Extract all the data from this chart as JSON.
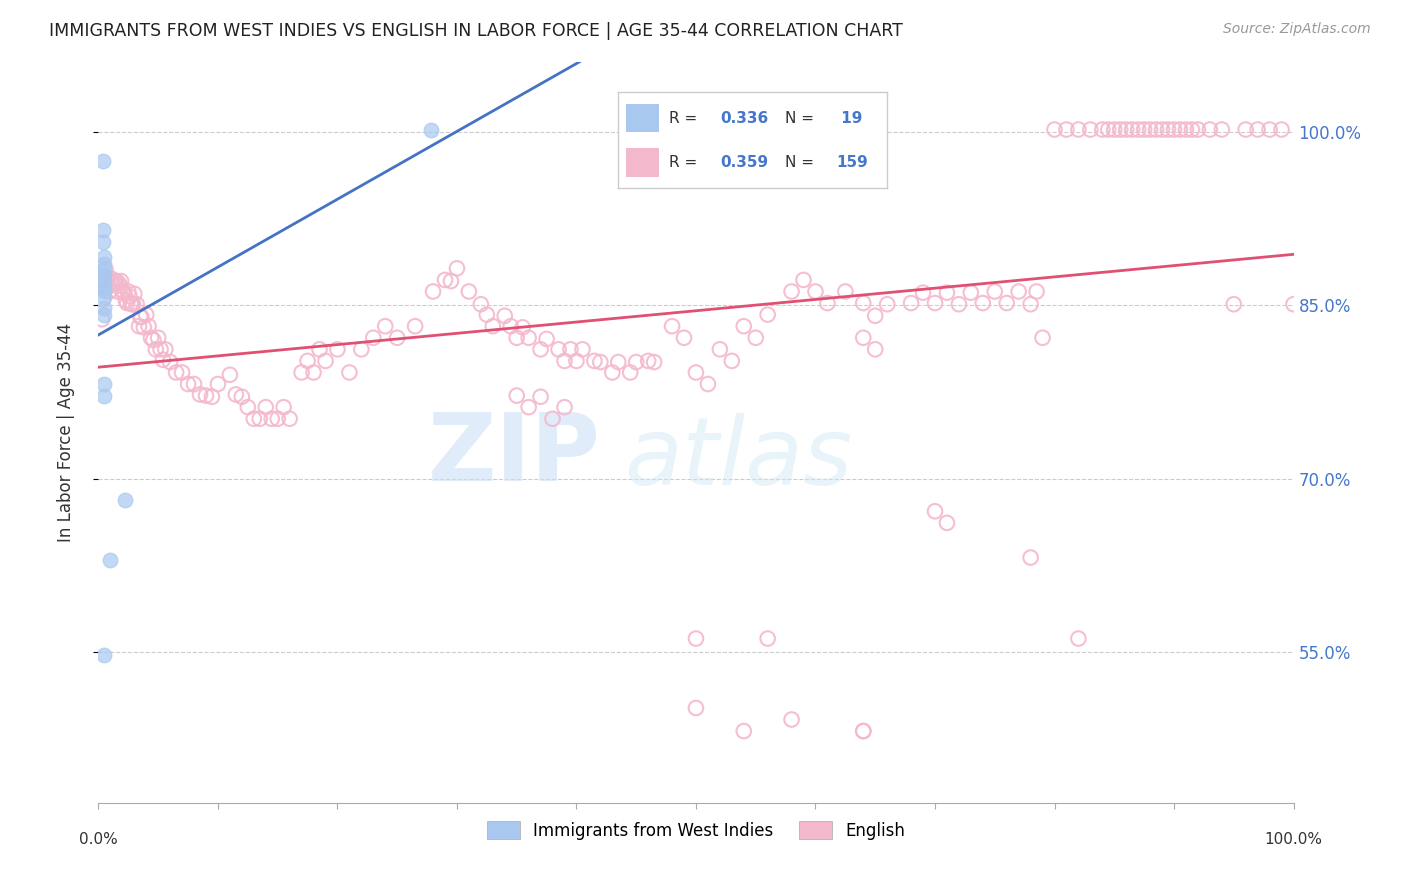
{
  "title": "IMMIGRANTS FROM WEST INDIES VS ENGLISH IN LABOR FORCE | AGE 35-44 CORRELATION CHART",
  "source": "Source: ZipAtlas.com",
  "ylabel": "In Labor Force | Age 35-44",
  "ytick_labels": [
    "55.0%",
    "70.0%",
    "85.0%",
    "100.0%"
  ],
  "ytick_values": [
    0.55,
    0.7,
    0.85,
    1.0
  ],
  "xlim": [
    0.0,
    1.0
  ],
  "ylim": [
    0.42,
    1.06
  ],
  "blue_color": "#a8c8f0",
  "pink_color": "#f4b8cc",
  "blue_line_color": "#4472c4",
  "pink_line_color": "#e05070",
  "blue_scatter": [
    [
      0.004,
      0.975
    ],
    [
      0.004,
      0.915
    ],
    [
      0.004,
      0.905
    ],
    [
      0.005,
      0.892
    ],
    [
      0.005,
      0.886
    ],
    [
      0.005,
      0.881
    ],
    [
      0.005,
      0.876
    ],
    [
      0.005,
      0.871
    ],
    [
      0.005,
      0.866
    ],
    [
      0.005,
      0.862
    ],
    [
      0.005,
      0.857
    ],
    [
      0.005,
      0.848
    ],
    [
      0.005,
      0.842
    ],
    [
      0.005,
      0.782
    ],
    [
      0.005,
      0.772
    ],
    [
      0.005,
      0.548
    ],
    [
      0.01,
      0.63
    ],
    [
      0.022,
      0.682
    ],
    [
      0.278,
      1.002
    ]
  ],
  "pink_scatter": [
    [
      0.003,
      0.838
    ],
    [
      0.004,
      0.855
    ],
    [
      0.005,
      0.872
    ],
    [
      0.006,
      0.881
    ],
    [
      0.007,
      0.865
    ],
    [
      0.008,
      0.872
    ],
    [
      0.009,
      0.862
    ],
    [
      0.01,
      0.871
    ],
    [
      0.011,
      0.873
    ],
    [
      0.012,
      0.868
    ],
    [
      0.013,
      0.871
    ],
    [
      0.014,
      0.869
    ],
    [
      0.015,
      0.871
    ],
    [
      0.016,
      0.862
    ],
    [
      0.017,
      0.869
    ],
    [
      0.018,
      0.867
    ],
    [
      0.019,
      0.871
    ],
    [
      0.02,
      0.862
    ],
    [
      0.021,
      0.862
    ],
    [
      0.022,
      0.86
    ],
    [
      0.023,
      0.854
    ],
    [
      0.024,
      0.852
    ],
    [
      0.025,
      0.862
    ],
    [
      0.026,
      0.858
    ],
    [
      0.027,
      0.852
    ],
    [
      0.028,
      0.851
    ],
    [
      0.029,
      0.851
    ],
    [
      0.03,
      0.86
    ],
    [
      0.032,
      0.851
    ],
    [
      0.034,
      0.832
    ],
    [
      0.035,
      0.84
    ],
    [
      0.036,
      0.84
    ],
    [
      0.038,
      0.831
    ],
    [
      0.04,
      0.842
    ],
    [
      0.042,
      0.832
    ],
    [
      0.044,
      0.822
    ],
    [
      0.046,
      0.82
    ],
    [
      0.048,
      0.812
    ],
    [
      0.05,
      0.822
    ],
    [
      0.052,
      0.812
    ],
    [
      0.054,
      0.803
    ],
    [
      0.056,
      0.812
    ],
    [
      0.06,
      0.801
    ],
    [
      0.065,
      0.792
    ],
    [
      0.07,
      0.792
    ],
    [
      0.075,
      0.782
    ],
    [
      0.08,
      0.782
    ],
    [
      0.085,
      0.773
    ],
    [
      0.09,
      0.772
    ],
    [
      0.095,
      0.771
    ],
    [
      0.1,
      0.782
    ],
    [
      0.11,
      0.79
    ],
    [
      0.115,
      0.773
    ],
    [
      0.12,
      0.771
    ],
    [
      0.125,
      0.762
    ],
    [
      0.13,
      0.752
    ],
    [
      0.135,
      0.752
    ],
    [
      0.14,
      0.762
    ],
    [
      0.145,
      0.752
    ],
    [
      0.15,
      0.752
    ],
    [
      0.155,
      0.762
    ],
    [
      0.16,
      0.752
    ],
    [
      0.17,
      0.792
    ],
    [
      0.175,
      0.802
    ],
    [
      0.18,
      0.792
    ],
    [
      0.185,
      0.812
    ],
    [
      0.19,
      0.802
    ],
    [
      0.2,
      0.812
    ],
    [
      0.21,
      0.792
    ],
    [
      0.22,
      0.812
    ],
    [
      0.23,
      0.822
    ],
    [
      0.24,
      0.832
    ],
    [
      0.25,
      0.822
    ],
    [
      0.265,
      0.832
    ],
    [
      0.28,
      0.862
    ],
    [
      0.295,
      0.871
    ],
    [
      0.31,
      0.862
    ],
    [
      0.32,
      0.851
    ],
    [
      0.325,
      0.842
    ],
    [
      0.33,
      0.832
    ],
    [
      0.34,
      0.841
    ],
    [
      0.345,
      0.832
    ],
    [
      0.35,
      0.822
    ],
    [
      0.355,
      0.831
    ],
    [
      0.36,
      0.822
    ],
    [
      0.37,
      0.812
    ],
    [
      0.375,
      0.821
    ],
    [
      0.385,
      0.812
    ],
    [
      0.39,
      0.802
    ],
    [
      0.395,
      0.812
    ],
    [
      0.4,
      0.802
    ],
    [
      0.405,
      0.812
    ],
    [
      0.415,
      0.802
    ],
    [
      0.42,
      0.801
    ],
    [
      0.43,
      0.792
    ],
    [
      0.435,
      0.801
    ],
    [
      0.445,
      0.792
    ],
    [
      0.45,
      0.801
    ],
    [
      0.46,
      0.802
    ],
    [
      0.465,
      0.801
    ],
    [
      0.35,
      0.772
    ],
    [
      0.36,
      0.762
    ],
    [
      0.37,
      0.771
    ],
    [
      0.38,
      0.752
    ],
    [
      0.39,
      0.762
    ],
    [
      0.3,
      0.882
    ],
    [
      0.29,
      0.872
    ],
    [
      0.48,
      0.832
    ],
    [
      0.49,
      0.822
    ],
    [
      0.5,
      0.792
    ],
    [
      0.51,
      0.782
    ],
    [
      0.52,
      0.812
    ],
    [
      0.53,
      0.802
    ],
    [
      0.54,
      0.832
    ],
    [
      0.55,
      0.822
    ],
    [
      0.56,
      0.842
    ],
    [
      0.58,
      0.862
    ],
    [
      0.59,
      0.872
    ],
    [
      0.6,
      0.862
    ],
    [
      0.61,
      0.852
    ],
    [
      0.625,
      0.862
    ],
    [
      0.64,
      0.852
    ],
    [
      0.65,
      0.841
    ],
    [
      0.66,
      0.851
    ],
    [
      0.68,
      0.852
    ],
    [
      0.69,
      0.861
    ],
    [
      0.7,
      0.852
    ],
    [
      0.71,
      0.861
    ],
    [
      0.72,
      0.851
    ],
    [
      0.73,
      0.861
    ],
    [
      0.74,
      0.852
    ],
    [
      0.75,
      0.862
    ],
    [
      0.76,
      0.852
    ],
    [
      0.77,
      0.862
    ],
    [
      0.78,
      0.851
    ],
    [
      0.785,
      0.862
    ],
    [
      0.8,
      1.002
    ],
    [
      0.81,
      1.002
    ],
    [
      0.82,
      1.002
    ],
    [
      0.83,
      1.002
    ],
    [
      0.84,
      1.002
    ],
    [
      0.845,
      1.002
    ],
    [
      0.85,
      1.002
    ],
    [
      0.855,
      1.002
    ],
    [
      0.86,
      1.002
    ],
    [
      0.865,
      1.002
    ],
    [
      0.87,
      1.002
    ],
    [
      0.875,
      1.002
    ],
    [
      0.88,
      1.002
    ],
    [
      0.885,
      1.002
    ],
    [
      0.89,
      1.002
    ],
    [
      0.895,
      1.002
    ],
    [
      0.9,
      1.002
    ],
    [
      0.905,
      1.002
    ],
    [
      0.91,
      1.002
    ],
    [
      0.915,
      1.002
    ],
    [
      0.92,
      1.002
    ],
    [
      0.93,
      1.002
    ],
    [
      0.94,
      1.002
    ],
    [
      0.96,
      1.002
    ],
    [
      0.97,
      1.002
    ],
    [
      0.98,
      1.002
    ],
    [
      0.99,
      1.002
    ],
    [
      0.95,
      0.851
    ],
    [
      1.0,
      0.851
    ],
    [
      0.78,
      0.632
    ],
    [
      0.79,
      0.822
    ],
    [
      0.7,
      0.672
    ],
    [
      0.71,
      0.662
    ],
    [
      0.64,
      0.822
    ],
    [
      0.65,
      0.812
    ],
    [
      0.56,
      0.562
    ],
    [
      0.64,
      0.482
    ],
    [
      0.5,
      0.562
    ],
    [
      0.82,
      0.562
    ],
    [
      0.54,
      0.482
    ],
    [
      0.64,
      0.482
    ],
    [
      0.5,
      0.502
    ],
    [
      0.58,
      0.492
    ]
  ],
  "blue_line_x": [
    0.0,
    0.278
  ],
  "blue_line_y_intercept": 0.75,
  "blue_line_slope": 0.92,
  "pink_line_y_at_0": 0.78,
  "pink_line_y_at_1": 0.925
}
